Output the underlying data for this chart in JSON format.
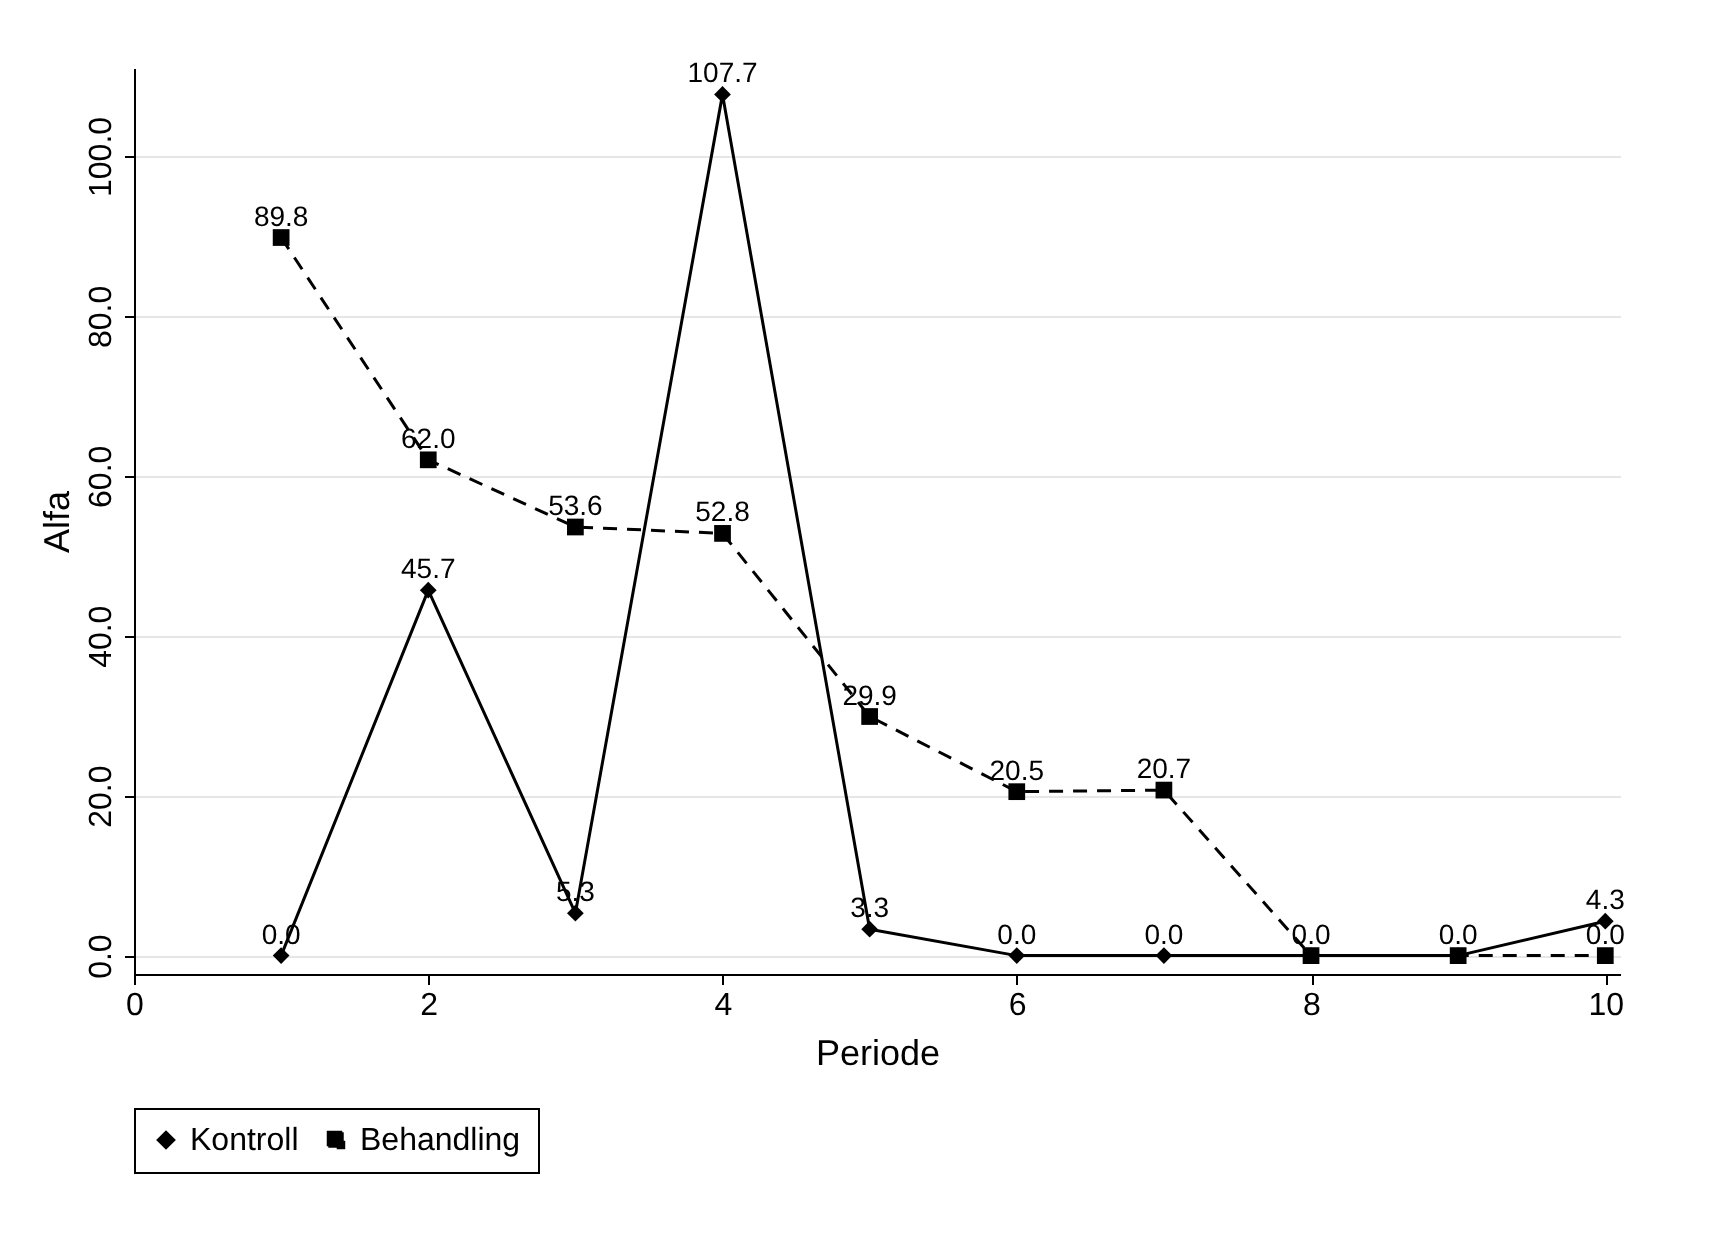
{
  "chart_data": {
    "type": "line",
    "xlabel": "Periode",
    "ylabel": "Alfa",
    "x": [
      1,
      2,
      3,
      4,
      5,
      6,
      7,
      8,
      9,
      10
    ],
    "series": [
      {
        "name": "Kontroll",
        "color": "#000000",
        "marker": "diamond",
        "line_style": "solid",
        "values": [
          0,
          45.7,
          5.3,
          107.7,
          3.3,
          0,
          0,
          0,
          0,
          4.3
        ],
        "value_labels": [
          "0.0",
          "45.7",
          "5.3",
          "107.7",
          "3.3",
          "0.0",
          "0.0",
          null,
          null,
          "4.3"
        ]
      },
      {
        "name": "Behandling",
        "color": "#000000",
        "marker": "square",
        "line_style": "dashed",
        "values": [
          89.8,
          62.0,
          53.6,
          52.8,
          29.9,
          20.5,
          20.7,
          0,
          0,
          0
        ],
        "value_labels": [
          "89.8",
          "62.0",
          "53.6",
          "52.8",
          "29.9",
          "20.5",
          "20.7",
          "0.0",
          "0.0",
          "0.0"
        ]
      }
    ],
    "xlim": [
      0,
      10.1
    ],
    "xticks": [
      0,
      2,
      4,
      6,
      8,
      10
    ],
    "ylim": [
      -2.3,
      111
    ],
    "yticks": [
      {
        "value": 0,
        "label": "0.0"
      },
      {
        "value": 20,
        "label": "20.0"
      },
      {
        "value": 40,
        "label": "40.0"
      },
      {
        "value": 60,
        "label": "60.0"
      },
      {
        "value": 80,
        "label": "80.0"
      },
      {
        "value": 100,
        "label": "100.0"
      }
    ],
    "grid": "y",
    "legend": "bottom"
  }
}
